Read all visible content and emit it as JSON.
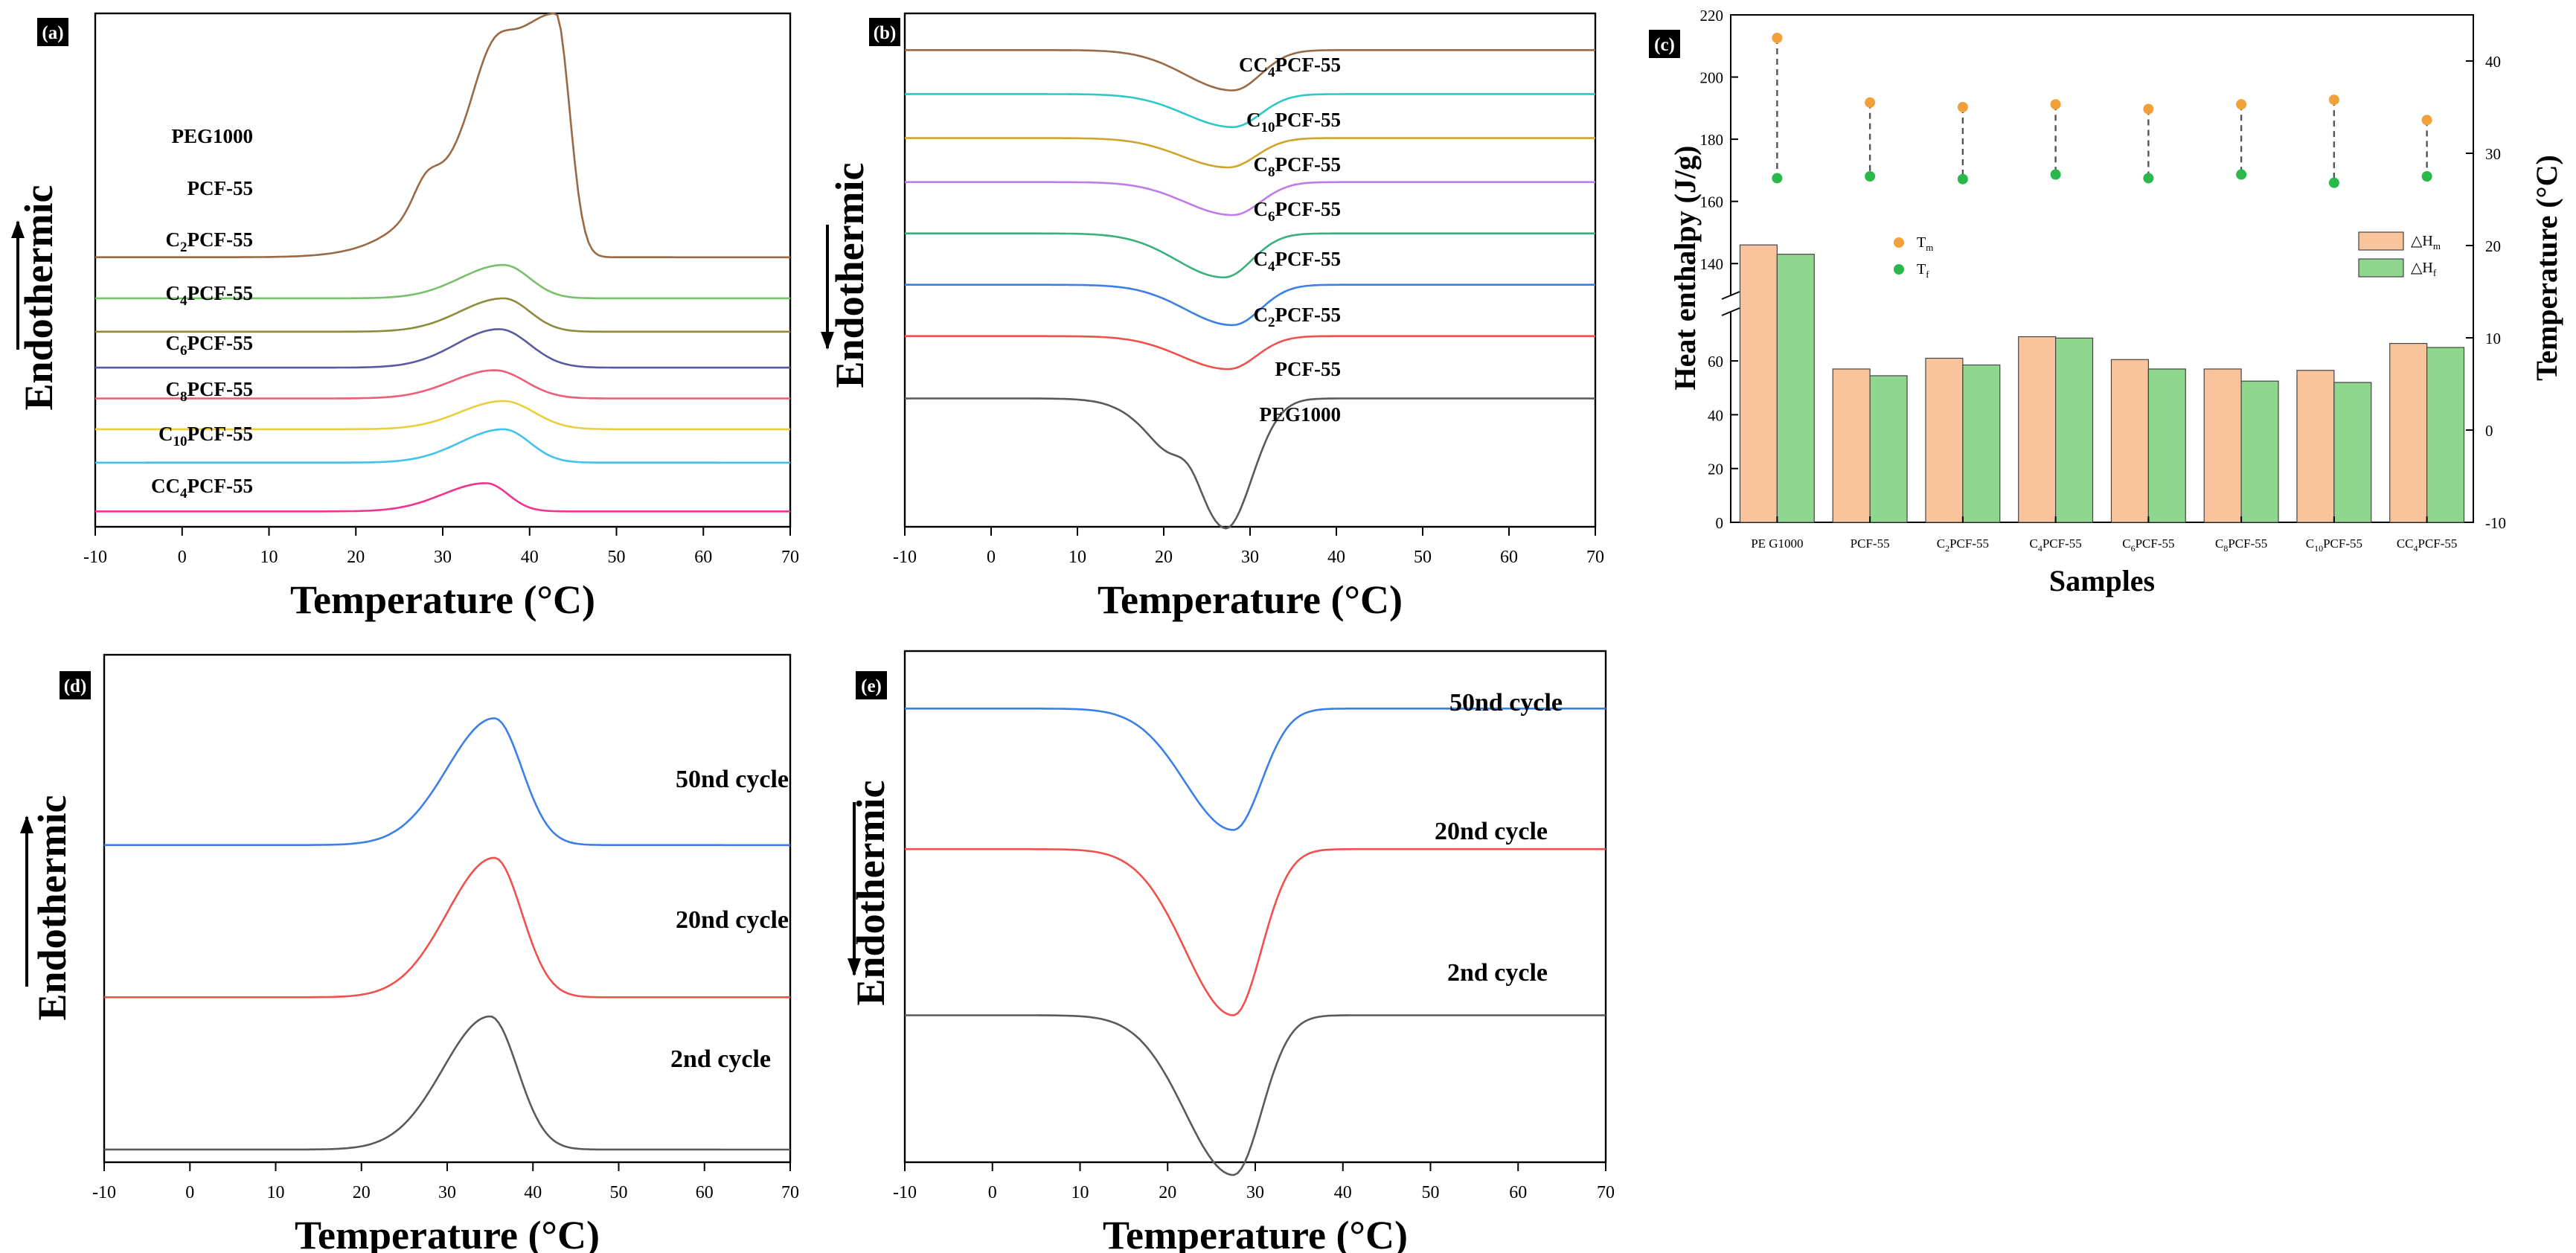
{
  "colors": {
    "black": "#000000",
    "gray": "#5a5a5a",
    "red": "#f0504e",
    "blue": "#3b7fe8",
    "pink": "#f2338f",
    "cyan": "#41c3ea",
    "yellow": "#e9cf3a",
    "lightpink": "#ef5d76",
    "purple": "#5a5aa0",
    "olive": "#8f8a3c",
    "green": "#78c06b",
    "brown": "#9a6a44",
    "teal": "#2ec8c8",
    "gold": "#cfa42a",
    "violet": "#c07be8",
    "sea": "#3ab07a",
    "orange_bar": "#f9c39b",
    "green_bar": "#8fd68f",
    "orange_dot": "#f2a03a",
    "green_dot": "#2ab84a"
  },
  "chart_data": [
    {
      "panel": "(a)",
      "type": "line",
      "xlabel": "Temperature (°C)",
      "ylabel": "Endothermic",
      "arrow": "up",
      "xlim": [
        -10,
        70
      ],
      "xticks": [
        "-10",
        "0",
        "10",
        "20",
        "30",
        "40",
        "50",
        "60",
        "70"
      ],
      "series": [
        {
          "name": "PEG1000",
          "label": "PEG1000",
          "color": "brown",
          "baseline": 10.5,
          "peak_x": 43,
          "height": 9.5,
          "sigma_left": 9,
          "sigma_right": 1.6
        },
        {
          "name": "PCF-55",
          "label": "PCF-55",
          "color": "green",
          "baseline": 8.9,
          "peak_x": 37,
          "height": 1.3,
          "sigma_left": 5,
          "sigma_right": 3
        },
        {
          "name": "C2PCF-55",
          "label": "C2PCF-55",
          "sub": "2",
          "color": "olive",
          "baseline": 7.6,
          "peak_x": 37,
          "height": 1.3,
          "sigma_left": 5,
          "sigma_right": 3
        },
        {
          "name": "C4PCF-55",
          "label": "C4PCF-55",
          "sub": "4",
          "color": "purple",
          "baseline": 6.2,
          "peak_x": 36.5,
          "height": 1.5,
          "sigma_left": 5,
          "sigma_right": 3.5
        },
        {
          "name": "C6PCF-55",
          "label": "C6PCF-55",
          "sub": "6",
          "color": "lightpink",
          "baseline": 5.0,
          "peak_x": 36,
          "height": 1.1,
          "sigma_left": 5,
          "sigma_right": 3.5
        },
        {
          "name": "C8PCF-55",
          "label": "C8PCF-55",
          "sub": "8",
          "color": "yellow",
          "baseline": 3.8,
          "peak_x": 37,
          "height": 1.1,
          "sigma_left": 5,
          "sigma_right": 3.5
        },
        {
          "name": "C10PCF-55",
          "label": "C10PCF-55",
          "sub": "10",
          "color": "cyan",
          "baseline": 2.5,
          "peak_x": 37,
          "height": 1.3,
          "sigma_left": 5,
          "sigma_right": 3
        },
        {
          "name": "CC4PCF-55",
          "label": "CC4PCF-55",
          "sub": "4",
          "color": "pink",
          "baseline": 0.6,
          "peak_x": 35,
          "height": 1.1,
          "sigma_left": 5,
          "sigma_right": 2.5
        }
      ]
    },
    {
      "panel": "(b)",
      "type": "line",
      "xlabel": "Temperature (°C)",
      "ylabel": "Endothermic",
      "arrow": "down",
      "xlim": [
        -10,
        70
      ],
      "xticks": [
        "-10",
        "0",
        "10",
        "20",
        "30",
        "40",
        "50",
        "60",
        "70"
      ],
      "series": [
        {
          "name": "CC4PCF-55",
          "label": "CC4PCF-55",
          "sub": "4",
          "color": "brown",
          "baseline": 13.0,
          "peak_x": 28,
          "height": -1.1
        },
        {
          "name": "C10PCF-55",
          "label": "C10PCF-55",
          "sub": "10",
          "color": "teal",
          "baseline": 11.8,
          "peak_x": 28,
          "height": -0.9
        },
        {
          "name": "C8PCF-55",
          "label": "C8PCF-55",
          "sub": "8",
          "color": "gold",
          "baseline": 10.6,
          "peak_x": 27.5,
          "height": -0.8
        },
        {
          "name": "C6PCF-55",
          "label": "C6PCF-55",
          "sub": "6",
          "color": "violet",
          "baseline": 9.4,
          "peak_x": 28,
          "height": -0.9
        },
        {
          "name": "C4PCF-55",
          "label": "C4PCF-55",
          "sub": "4",
          "color": "sea",
          "baseline": 8.0,
          "peak_x": 27,
          "height": -1.2
        },
        {
          "name": "C2PCF-55",
          "label": "C2PCF-55",
          "sub": "2",
          "color": "blue",
          "baseline": 6.6,
          "peak_x": 28,
          "height": -1.1
        },
        {
          "name": "PCF-55",
          "label": "PCF-55",
          "color": "red",
          "baseline": 5.2,
          "peak_x": 27.5,
          "height": -0.9
        },
        {
          "name": "PEG1000",
          "label": "PEG1000",
          "color": "gray",
          "baseline": 3.5,
          "peak_x": 27,
          "height": -3.6
        }
      ]
    },
    {
      "panel": "(c)",
      "type": "bar",
      "xlabel": "Samples",
      "ylabel": "Heat enthalpy (J/g)",
      "y2label": "Temperature (°C)",
      "categories": [
        "PEG1000",
        "PCF-55",
        "C2PCF-55",
        "C4PCF-55",
        "C6PCF-55",
        "C8PCF-55",
        "C10PCF-55",
        "CC4PCF-55"
      ],
      "category_labels": [
        {
          "pre": "PE G1000",
          "sub": "",
          "post": ""
        },
        {
          "pre": "PCF-55",
          "sub": "",
          "post": ""
        },
        {
          "pre": "C",
          "sub": "2",
          "post": "PCF-55"
        },
        {
          "pre": "C",
          "sub": "4",
          "post": "PCF-55"
        },
        {
          "pre": "C",
          "sub": "6",
          "post": "PCF-55"
        },
        {
          "pre": "C",
          "sub": "8",
          "post": "PCF-55"
        },
        {
          "pre": "C",
          "sub": "10",
          "post": "PCF-55"
        },
        {
          "pre": "CC",
          "sub": "4",
          "post": "PCF-55"
        }
      ],
      "series": [
        {
          "name": "ΔHm",
          "label_main": "△H",
          "label_sub": "m",
          "color": "orange_bar",
          "values": [
            146,
            57,
            61,
            69,
            60.5,
            57,
            56.5,
            66.5
          ]
        },
        {
          "name": "ΔHf",
          "label_main": "△H",
          "label_sub": "f",
          "color": "green_bar",
          "values": [
            143,
            54.5,
            58.5,
            68.5,
            57,
            52.5,
            52,
            65
          ]
        }
      ],
      "temperatures": [
        {
          "name": "Tm",
          "label_main": "T",
          "label_sub": "m",
          "color": "orange_dot",
          "values": [
            42.5,
            35.5,
            35,
            35.3,
            34.8,
            35.3,
            35.8,
            33.6
          ]
        },
        {
          "name": "Tf",
          "label_main": "T",
          "label_sub": "f",
          "color": "green_dot",
          "values": [
            27.3,
            27.5,
            27.2,
            27.7,
            27.3,
            27.7,
            26.8,
            27.5
          ]
        }
      ],
      "yticks_lower": [
        "0",
        "20",
        "40",
        "60"
      ],
      "yticks_upper": [
        "140",
        "160",
        "180",
        "200",
        "220"
      ],
      "y2ticks": [
        "-10",
        "0",
        "10",
        "20",
        "30",
        "40"
      ],
      "ylim_lower": [
        0,
        78
      ],
      "ylim_upper": [
        130,
        220
      ],
      "y2lim": [
        -10,
        45
      ]
    },
    {
      "panel": "(d)",
      "type": "line",
      "xlabel": "Temperature (°C)",
      "ylabel": "Endothermic",
      "arrow": "up",
      "xlim": [
        -10,
        70
      ],
      "xticks": [
        "-10",
        "0",
        "10",
        "20",
        "30",
        "40",
        "50",
        "60",
        "70"
      ],
      "series": [
        {
          "name": "50nd cycle",
          "label": "50nd cycle",
          "color": "blue",
          "baseline": 5.0,
          "peak_x": 35.5,
          "height": 2.0
        },
        {
          "name": "20nd cycle",
          "label": "20nd cycle",
          "color": "red",
          "baseline": 2.6,
          "peak_x": 35.5,
          "height": 2.2
        },
        {
          "name": "2nd cycle",
          "label": "2nd cycle",
          "color": "gray",
          "baseline": 0.2,
          "peak_x": 35,
          "height": 2.1
        }
      ]
    },
    {
      "panel": "(e)",
      "type": "line",
      "xlabel": "Temperature (°C)",
      "ylabel": "Endothermic",
      "arrow": "down",
      "xlim": [
        -10,
        70
      ],
      "xticks": [
        "-10",
        "0",
        "10",
        "20",
        "30",
        "40",
        "50",
        "60",
        "70"
      ],
      "series": [
        {
          "name": "50nd cycle",
          "label": "50nd cycle",
          "color": "blue",
          "baseline": 7.1,
          "peak_x": 27.5,
          "height": -1.9
        },
        {
          "name": "20nd cycle",
          "label": "20nd cycle",
          "color": "red",
          "baseline": 4.9,
          "peak_x": 27.5,
          "height": -2.6
        },
        {
          "name": "2nd cycle",
          "label": "2nd cycle",
          "color": "gray",
          "baseline": 2.3,
          "peak_x": 27.5,
          "height": -2.5
        }
      ]
    }
  ]
}
